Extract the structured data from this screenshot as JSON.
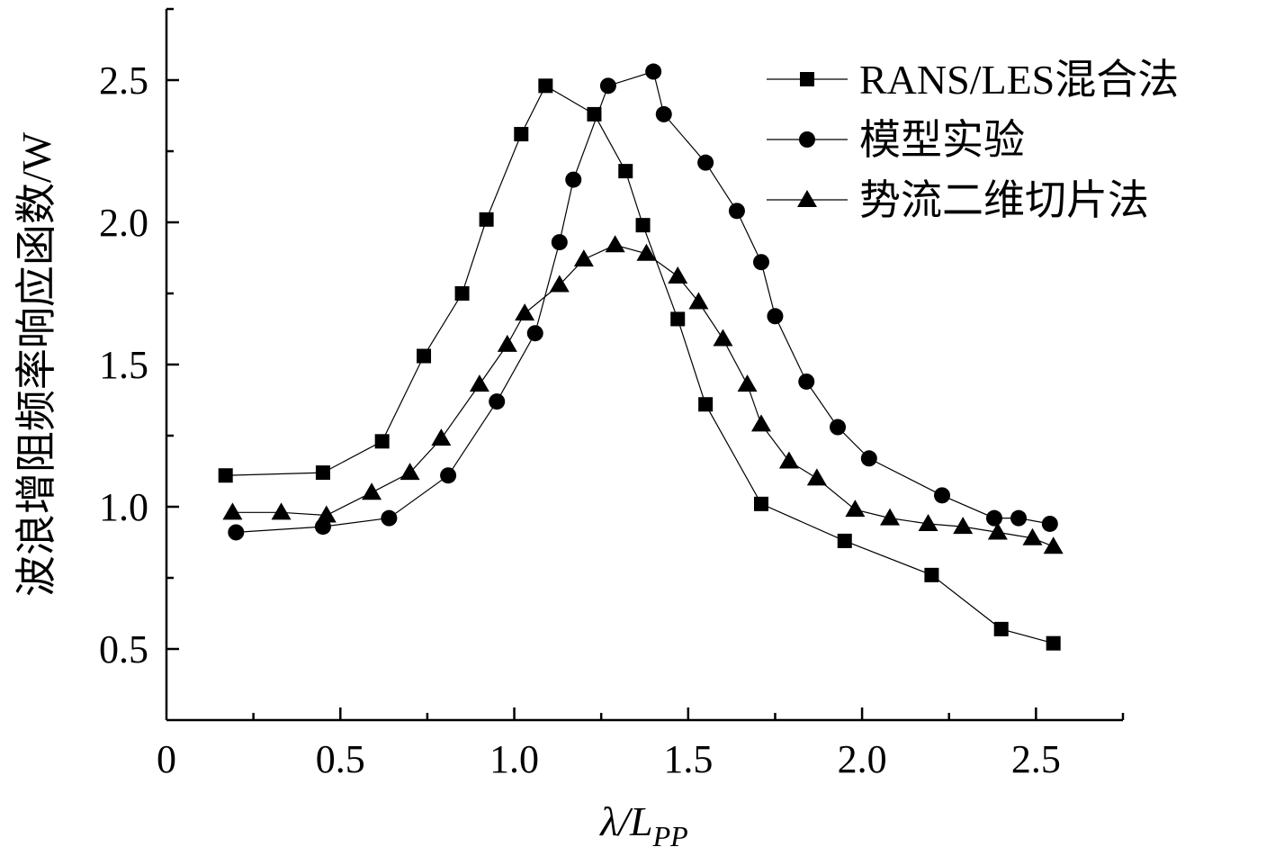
{
  "chart_data": {
    "type": "line",
    "xlabel": "λ/L",
    "xlabel_sub": "PP",
    "ylabel": "波浪增阻频率响应函数/W",
    "xlim": [
      0,
      2.75
    ],
    "ylim": [
      0.25,
      2.75
    ],
    "x_ticks": [
      0,
      0.5,
      1.0,
      1.5,
      2.0,
      2.5
    ],
    "x_tick_labels": [
      "0",
      "0.5",
      "1.0",
      "1.5",
      "2.0",
      "2.5"
    ],
    "x_minor_ticks": [
      0.25,
      0.75,
      1.25,
      1.75,
      2.25,
      2.75
    ],
    "y_ticks": [
      0.5,
      1.0,
      1.5,
      2.0,
      2.5
    ],
    "y_tick_labels": [
      "0.5",
      "1.0",
      "1.5",
      "2.0",
      "2.5"
    ],
    "grid": false,
    "legend_position": "top-right",
    "series": [
      {
        "name": "RANS/LES混合法",
        "marker": "square",
        "x": [
          0.17,
          0.45,
          0.62,
          0.74,
          0.85,
          0.92,
          1.02,
          1.09,
          1.23,
          1.32,
          1.37,
          1.47,
          1.55,
          1.71,
          1.95,
          2.2,
          2.4,
          2.55
        ],
        "y": [
          1.11,
          1.12,
          1.23,
          1.53,
          1.75,
          2.01,
          2.31,
          2.48,
          2.38,
          2.18,
          1.99,
          1.66,
          1.36,
          1.01,
          0.88,
          0.76,
          0.57,
          0.52
        ]
      },
      {
        "name": "模型实验",
        "marker": "circle",
        "x": [
          0.2,
          0.45,
          0.64,
          0.81,
          0.95,
          1.06,
          1.13,
          1.17,
          1.27,
          1.4,
          1.43,
          1.55,
          1.64,
          1.71,
          1.75,
          1.84,
          1.93,
          2.02,
          2.23,
          2.38,
          2.45,
          2.54
        ],
        "y": [
          0.91,
          0.93,
          0.96,
          1.11,
          1.37,
          1.61,
          1.93,
          2.15,
          2.48,
          2.53,
          2.38,
          2.21,
          2.04,
          1.86,
          1.67,
          1.44,
          1.28,
          1.17,
          1.04,
          0.96,
          0.96,
          0.94
        ]
      },
      {
        "name": "势流二维切片法",
        "marker": "triangle",
        "x": [
          0.19,
          0.33,
          0.46,
          0.59,
          0.7,
          0.79,
          0.9,
          0.98,
          1.03,
          1.13,
          1.2,
          1.29,
          1.38,
          1.47,
          1.53,
          1.6,
          1.67,
          1.71,
          1.79,
          1.87,
          1.98,
          2.08,
          2.19,
          2.29,
          2.39,
          2.49,
          2.55
        ],
        "y": [
          0.98,
          0.98,
          0.97,
          1.05,
          1.12,
          1.24,
          1.43,
          1.57,
          1.68,
          1.78,
          1.87,
          1.92,
          1.89,
          1.81,
          1.72,
          1.59,
          1.43,
          1.29,
          1.16,
          1.1,
          0.99,
          0.96,
          0.94,
          0.93,
          0.91,
          0.89,
          0.86
        ]
      }
    ]
  }
}
